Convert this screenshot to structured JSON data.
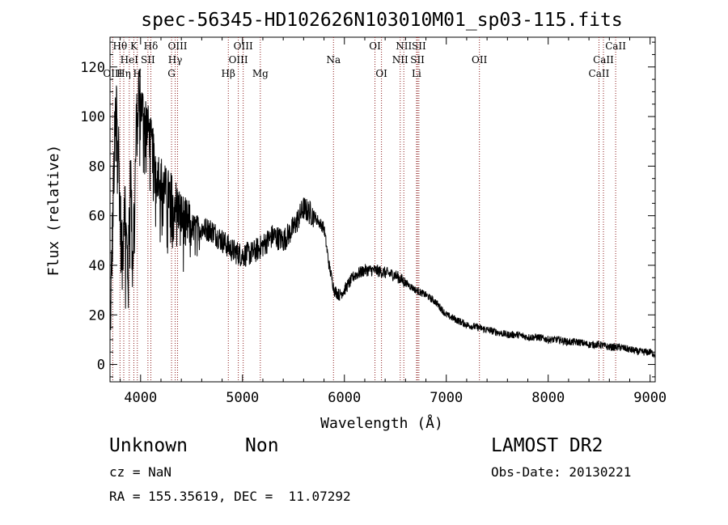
{
  "chart_data": {
    "type": "line",
    "title": "spec-56345-HD102626N103010M01_sp03-115.fits",
    "xlabel": "Wavelength (Å)",
    "ylabel": "Flux (relative)",
    "xlim": [
      3700,
      9050
    ],
    "ylim": [
      -7,
      132
    ],
    "xticks": [
      4000,
      5000,
      6000,
      7000,
      8000,
      9000
    ],
    "yticks": [
      0,
      20,
      40,
      60,
      80,
      100,
      120
    ],
    "grid": false,
    "legend": "none",
    "line_color": "#000000",
    "marker_color": "#8b1a1a",
    "series": [
      {
        "x": [
          3700,
          3720,
          3740,
          3760,
          3780,
          3800,
          3820,
          3840,
          3860,
          3880,
          3900,
          3920,
          3940,
          3960,
          3980,
          4000,
          4050,
          4100,
          4150,
          4200,
          4250,
          4300,
          4350,
          4400,
          4450,
          4500,
          4600,
          4700,
          4800,
          4900,
          5000,
          5100,
          5200,
          5300,
          5400,
          5500,
          5600,
          5700,
          5800,
          5850,
          5900,
          5950,
          6000,
          6100,
          6200,
          6300,
          6400,
          6500,
          6600,
          6700,
          6800,
          6900,
          7000,
          7100,
          7200,
          7300,
          7400,
          7500,
          7600,
          7700,
          7800,
          7900,
          8000,
          8100,
          8200,
          8300,
          8400,
          8500,
          8600,
          8700,
          8800,
          8900,
          9000,
          9050
        ],
        "values": [
          12,
          45,
          80,
          108,
          95,
          60,
          40,
          70,
          50,
          35,
          85,
          40,
          65,
          95,
          110,
          105,
          100,
          90,
          80,
          75,
          70,
          68,
          65,
          60,
          57,
          56,
          55,
          54,
          50,
          46,
          44,
          45,
          48,
          52,
          50,
          55,
          63,
          60,
          55,
          40,
          30,
          28,
          30,
          36,
          38,
          38,
          37,
          36,
          33,
          30,
          28,
          25,
          20,
          18,
          16,
          15,
          14,
          13,
          12,
          12,
          11,
          11,
          10,
          10,
          9,
          9,
          8,
          8,
          7,
          7,
          6,
          5,
          5,
          4
        ]
      }
    ],
    "lines": [
      {
        "name": "Hθ",
        "x": 3798,
        "row": 1
      },
      {
        "name": "OIII",
        "x": 3727,
        "row": 3
      },
      {
        "name": "Hη",
        "x": 3835,
        "row": 3
      },
      {
        "name": "HeI",
        "x": 3889,
        "row": 2
      },
      {
        "name": "K",
        "x": 3934,
        "row": 1
      },
      {
        "name": "H",
        "x": 3968,
        "row": 3
      },
      {
        "name": "Hδ",
        "x": 4101,
        "row": 1
      },
      {
        "name": "SII",
        "x": 4072,
        "row": 2
      },
      {
        "name": "OIII",
        "x": 4363,
        "row": 1
      },
      {
        "name": "Hγ",
        "x": 4340,
        "row": 2
      },
      {
        "name": "G",
        "x": 4304,
        "row": 3
      },
      {
        "name": "Hβ",
        "x": 4861,
        "row": 3
      },
      {
        "name": "OIII",
        "x": 5007,
        "row": 1
      },
      {
        "name": "OIII",
        "x": 4959,
        "row": 2
      },
      {
        "name": "Mg",
        "x": 5175,
        "row": 3
      },
      {
        "name": "Na",
        "x": 5893,
        "row": 2
      },
      {
        "name": "OI",
        "x": 6300,
        "row": 1
      },
      {
        "name": "OI",
        "x": 6364,
        "row": 3
      },
      {
        "name": "NII",
        "x": 6583,
        "row": 1
      },
      {
        "name": "NII",
        "x": 6548,
        "row": 2
      },
      {
        "name": "SII",
        "x": 6731,
        "row": 1
      },
      {
        "name": "SII",
        "x": 6717,
        "row": 2
      },
      {
        "name": "Li",
        "x": 6708,
        "row": 3
      },
      {
        "name": "OII",
        "x": 7325,
        "row": 2
      },
      {
        "name": "CaII",
        "x": 8662,
        "row": 1
      },
      {
        "name": "CaII",
        "x": 8542,
        "row": 2
      },
      {
        "name": "CaII",
        "x": 8498,
        "row": 3
      }
    ]
  },
  "info": {
    "object_class": "Unknown",
    "object_subclass": "Non",
    "survey": "LAMOST DR2",
    "redshift": "cz = NaN",
    "obs_date": "Obs-Date: 20130221",
    "coords": "RA = 155.35619, DEC =  11.07292"
  }
}
